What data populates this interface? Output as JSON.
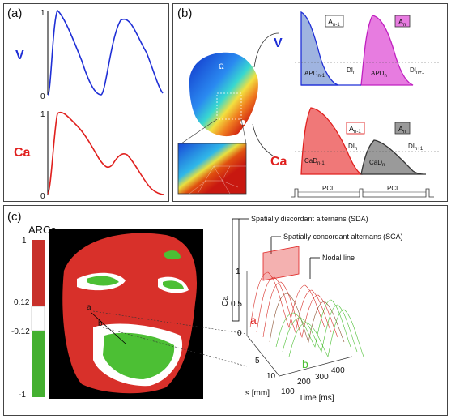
{
  "panels": {
    "a": {
      "label": "(a)",
      "v_label": "V",
      "ca_label": "Ca",
      "v_top": "1",
      "v_bottom": "0",
      "ca_top": "1",
      "ca_bottom": "0"
    },
    "b": {
      "label": "(b)",
      "v_label": "V",
      "ca_label": "Ca",
      "omega": "Ω",
      "a_prev": "A",
      "a_prev_sub": "n-1",
      "a_cur": "A",
      "a_cur_sub": "n",
      "apd_prev": "APD",
      "apd_prev_sub": "n-1",
      "di_n": "DI",
      "di_n_sub": "n",
      "apd_cur": "APD",
      "apd_cur_sub": "n",
      "di_next": "DI",
      "di_next_sub": "n+1",
      "ca_a_prev": "A",
      "ca_a_prev_sub": "n-1",
      "ca_a_cur": "A",
      "ca_a_cur_sub": "n",
      "cad_prev": "CaD",
      "cad_prev_sub": "n-1",
      "cad_cur": "CaD",
      "cad_cur_sub": "n",
      "ca_di_n": "DI",
      "ca_di_n_sub": "n",
      "ca_di_next": "DI",
      "ca_di_next_sub": "n+1",
      "pcl1": "PCL",
      "pcl2": "PCL"
    },
    "c": {
      "label": "(c)",
      "colorbar_title": "ARCa",
      "colorbar_ticks": [
        "1",
        "0.12",
        "-0.12",
        "-1"
      ],
      "map_label_a": "a",
      "map_label_b": "b",
      "annot_sda": "Spatially discordant alternans (SDA)",
      "annot_sca": "Spatially concordant alternans (SCA)",
      "annot_nodal": "Nodal line",
      "plot3d": {
        "z_label": "Ca",
        "s_label": "s [mm]",
        "t_label": "Time [ms]",
        "z_ticks": [
          "1",
          "0.5",
          "0"
        ],
        "s_ticks": [
          "5",
          "10"
        ],
        "t_ticks": [
          "100",
          "200",
          "300",
          "400"
        ],
        "curve_a": "a",
        "curve_b": "b"
      }
    }
  },
  "colors": {
    "v_trace": "#1f2fd6",
    "ca_trace": "#e0201e",
    "a_prev_fill": "#9fb4e0",
    "a_cur_fill": "#e77ce0",
    "ca_prev_fill": "#f07878",
    "ca_cur_fill": "#9a9a9a",
    "map_red": "#d8302a",
    "map_green": "#4cbf34"
  }
}
